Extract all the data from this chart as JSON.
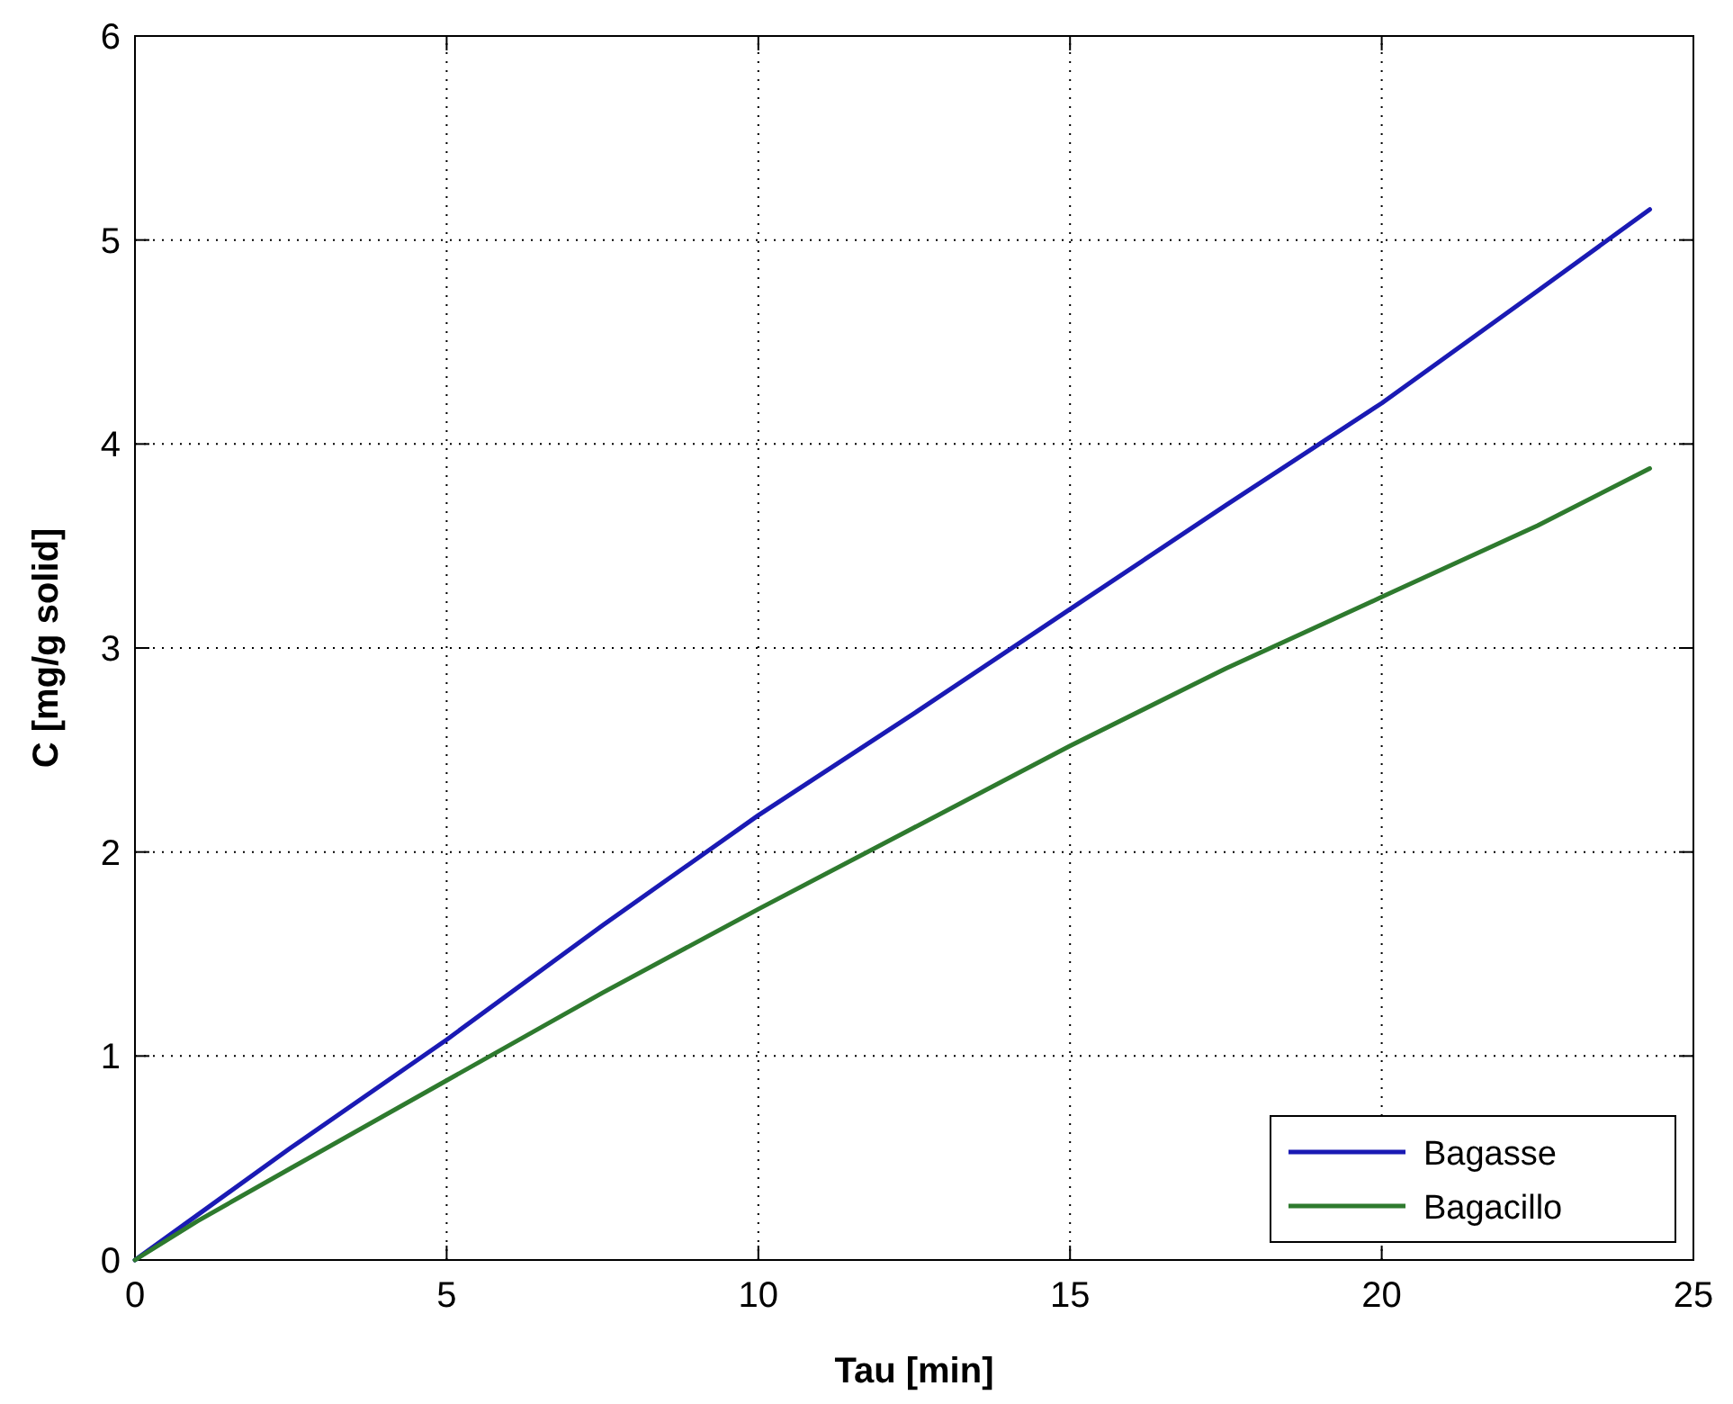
{
  "chart_data": {
    "type": "line",
    "xlabel": "Tau [min]",
    "ylabel": "C [mg/g solid]",
    "xlim": [
      0,
      25
    ],
    "ylim": [
      0,
      6
    ],
    "xticks": [
      0,
      5,
      10,
      15,
      20,
      25
    ],
    "yticks": [
      0,
      1,
      2,
      3,
      4,
      5,
      6
    ],
    "grid": true,
    "legend": "bottom right",
    "line_style": "solid",
    "series": [
      {
        "name": "Bagasse",
        "color": "#1a1ab4",
        "x": [
          0,
          1,
          2.5,
          5,
          7.5,
          10,
          12.5,
          15,
          17.5,
          20,
          22.5,
          24.3
        ],
        "values": [
          0,
          0.22,
          0.55,
          1.08,
          1.64,
          2.18,
          2.68,
          3.19,
          3.7,
          4.2,
          4.75,
          5.15
        ]
      },
      {
        "name": "Bagacillo",
        "color": "#2e7a2e",
        "x": [
          0,
          1,
          2.5,
          5,
          7.5,
          10,
          12.5,
          15,
          17.5,
          20,
          22.5,
          24.3
        ],
        "values": [
          0,
          0.19,
          0.45,
          0.88,
          1.31,
          1.72,
          2.12,
          2.52,
          2.9,
          3.25,
          3.6,
          3.88
        ]
      }
    ]
  }
}
